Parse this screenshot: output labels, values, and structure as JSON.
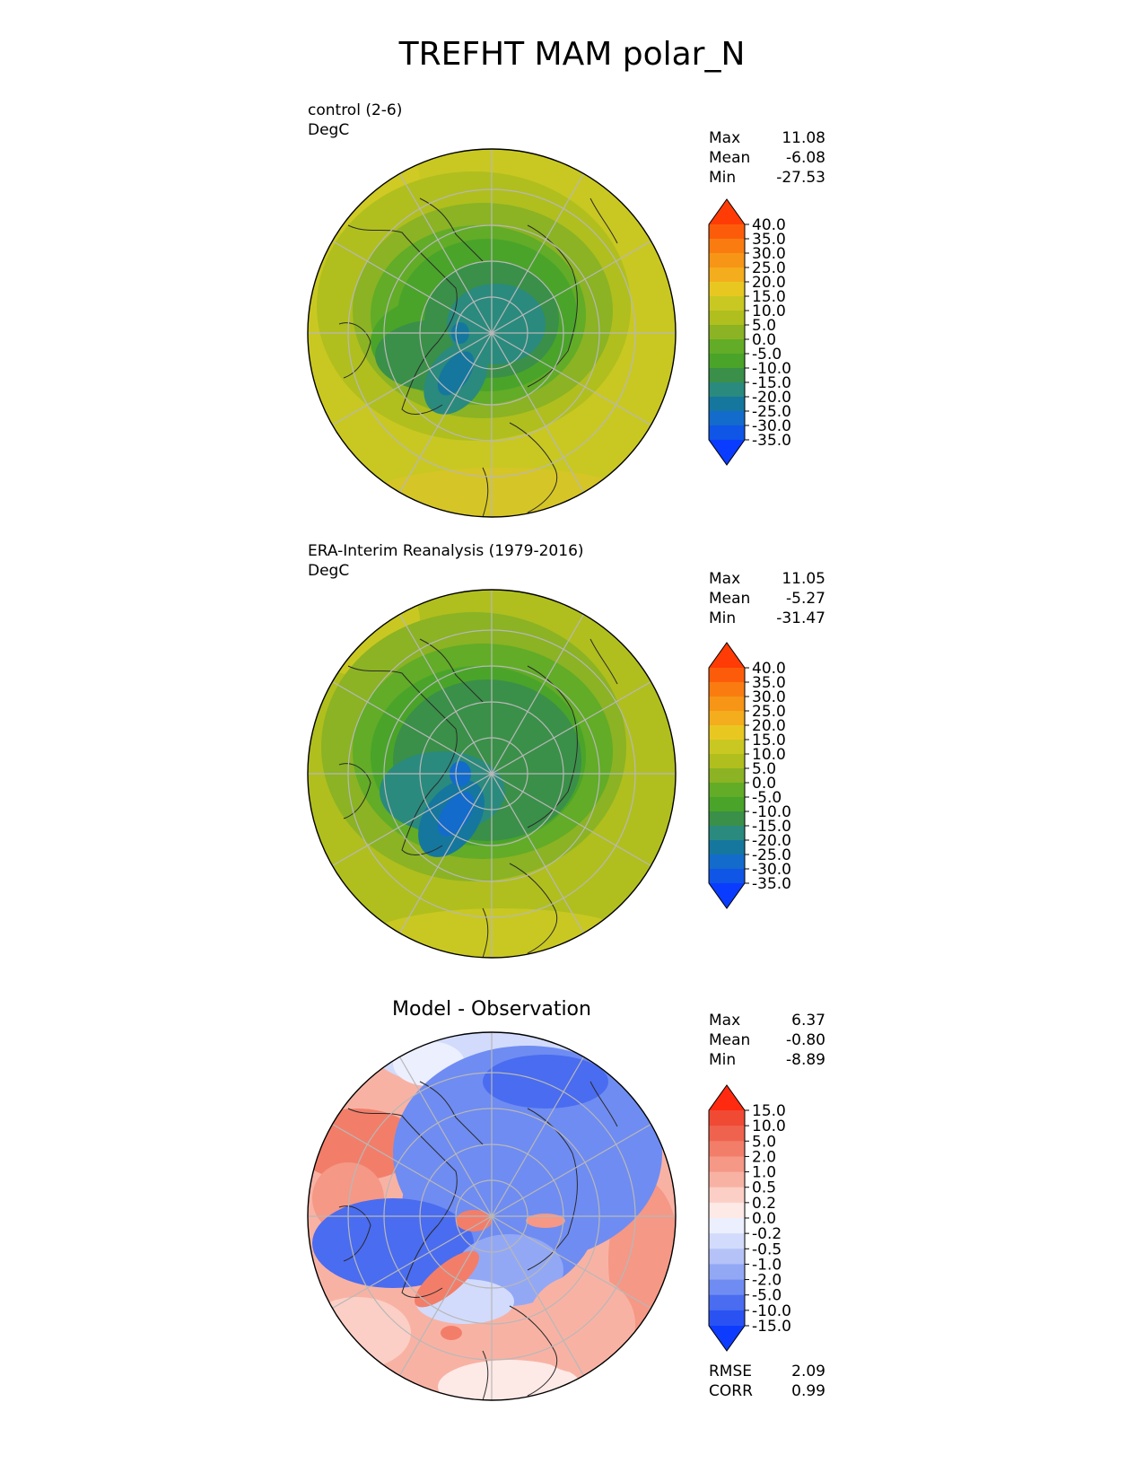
{
  "title": "TREFHT MAM polar_N",
  "panels": [
    {
      "id": "test",
      "label_line1": "control (2-6)",
      "label_line2": "DegC",
      "stats": [
        {
          "label": "Max",
          "value": "11.08"
        },
        {
          "label": "Mean",
          "value": "-6.08"
        },
        {
          "label": "Min",
          "value": "-27.53"
        }
      ],
      "colorbar_ticks": [
        "40.0",
        "35.0",
        "30.0",
        "25.0",
        "20.0",
        "15.0",
        "10.0",
        "5.0",
        "0.0",
        "-5.0",
        "-10.0",
        "-15.0",
        "-20.0",
        "-25.0",
        "-30.0",
        "-35.0"
      ]
    },
    {
      "id": "reference",
      "label_line1": "ERA-Interim Reanalysis (1979-2016)",
      "label_line2": "DegC",
      "stats": [
        {
          "label": "Max",
          "value": "11.05"
        },
        {
          "label": "Mean",
          "value": "-5.27"
        },
        {
          "label": "Min",
          "value": "-31.47"
        }
      ],
      "colorbar_ticks": [
        "40.0",
        "35.0",
        "30.0",
        "25.0",
        "20.0",
        "15.0",
        "10.0",
        "5.0",
        "0.0",
        "-5.0",
        "-10.0",
        "-15.0",
        "-20.0",
        "-25.0",
        "-30.0",
        "-35.0"
      ]
    },
    {
      "id": "difference",
      "title": "Model - Observation",
      "stats": [
        {
          "label": "Max",
          "value": "6.37"
        },
        {
          "label": "Mean",
          "value": "-0.80"
        },
        {
          "label": "Min",
          "value": "-8.89"
        }
      ],
      "colorbar_ticks": [
        "15.0",
        "10.0",
        "5.0",
        "2.0",
        "1.0",
        "0.5",
        "0.2",
        "0.0",
        "-0.2",
        "-0.5",
        "-1.0",
        "-2.0",
        "-5.0",
        "-10.0",
        "-15.0"
      ],
      "metrics": [
        {
          "label": "RMSE",
          "value": "2.09"
        },
        {
          "label": "CORR",
          "value": "0.99"
        }
      ]
    }
  ],
  "colors": {
    "temp_scale": [
      "#0a3cff",
      "#0f55e6",
      "#136bcc",
      "#15779e",
      "#2a8a7e",
      "#3a9048",
      "#4aa42a",
      "#62ac27",
      "#8bb324",
      "#b0bf1e",
      "#c9c822",
      "#e8c820",
      "#f4ad1c",
      "#f79516",
      "#fa7c10",
      "#fc5c0a",
      "#ff3c05"
    ],
    "diff_scale": [
      "#0d3cff",
      "#2a52f2",
      "#4a6cf0",
      "#6f8cf2",
      "#93a8f5",
      "#b4c2f8",
      "#d2dbfb",
      "#eceffd",
      "#fde9e6",
      "#fbcfc6",
      "#f8b2a4",
      "#f59886",
      "#f27e6a",
      "#ef634e",
      "#f04a34",
      "#ff2a10"
    ]
  }
}
